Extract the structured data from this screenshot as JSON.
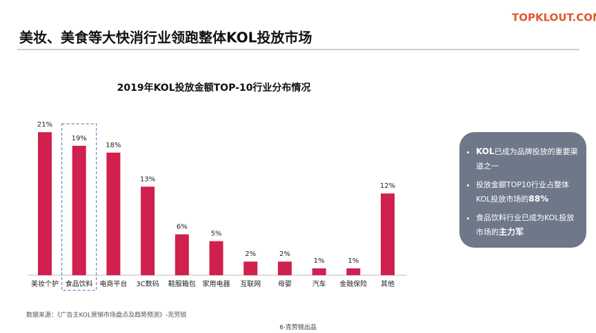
{
  "header": {
    "title": "美妆、美食等大快消行业领跑整体KOL投放市场",
    "logo": "TOPKLOUT.COM"
  },
  "chart_data": {
    "type": "bar",
    "title": "2019年KOL投放金额TOP-10行业分布情况",
    "categories": [
      "美妆个护",
      "食品饮料",
      "电商平台",
      "3C数码",
      "鞋服箱包",
      "家用电器",
      "互联网",
      "母婴",
      "汽车",
      "金融保险",
      "其他"
    ],
    "values": [
      21,
      19,
      18,
      13,
      6,
      5,
      2,
      2,
      1,
      1,
      12
    ],
    "value_labels": [
      "21%",
      "19%",
      "18%",
      "13%",
      "6%",
      "5%",
      "2%",
      "2%",
      "1%",
      "1%",
      "12%"
    ],
    "color": "#d0204e",
    "highlight": 1
  },
  "callout": [
    [
      {
        "text": "KOL",
        "bold": true
      },
      {
        "text": "已成为品牌投放的重要渠道之一",
        "bold": false
      }
    ],
    [
      {
        "text": "投放金额TOP10行业占整体KOL投放市场的",
        "bold": false
      },
      {
        "text": "88%",
        "bold": true
      }
    ],
    [
      {
        "text": "食品饮料行业已成为KOL投放市场的",
        "bold": false
      },
      {
        "text": "主力军",
        "bold": true
      }
    ]
  ],
  "source": "数据来源：《广告主KOL营销市场盘点及趋势预测》-克劳锐",
  "footer": "6·克劳锐出品"
}
